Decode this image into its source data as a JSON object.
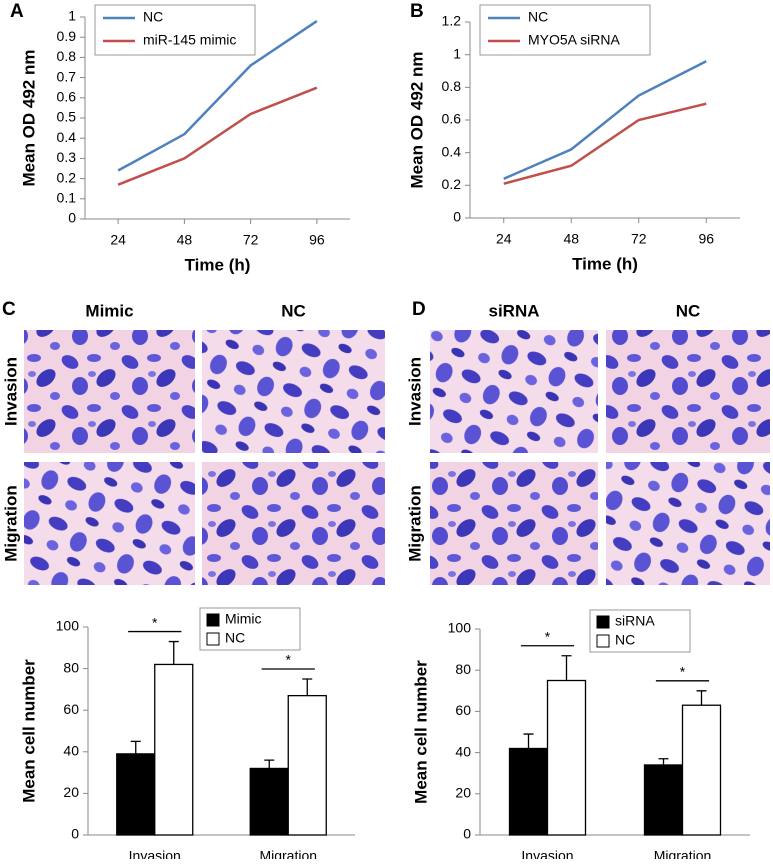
{
  "chart_data": [
    {
      "type": "line",
      "panel": "A",
      "ylabel": "Mean OD 492 nm",
      "xlabel": "Time (h)",
      "x": [
        24,
        48,
        72,
        96
      ],
      "xlim": [
        12,
        108
      ],
      "xticks": [
        24,
        48,
        72,
        96
      ],
      "ylim": [
        0,
        1
      ],
      "yticks": [
        0,
        0.1,
        0.2,
        0.3,
        0.4,
        0.5,
        0.6,
        0.7,
        0.8,
        0.9,
        1
      ],
      "legend": "upper left",
      "series": [
        {
          "name": "NC",
          "color": "#4f81bd",
          "values": [
            0.24,
            0.42,
            0.76,
            0.98
          ]
        },
        {
          "name": "miR-145 mimic",
          "color": "#c0504d",
          "values": [
            0.17,
            0.3,
            0.52,
            0.65
          ]
        }
      ]
    },
    {
      "type": "line",
      "panel": "B",
      "ylabel": "Mean OD 492 nm",
      "xlabel": "Time (h)",
      "x": [
        24,
        48,
        72,
        96
      ],
      "xlim": [
        12,
        108
      ],
      "xticks": [
        24,
        48,
        72,
        96
      ],
      "ylim": [
        0,
        1.2
      ],
      "yticks": [
        0,
        0.2,
        0.4,
        0.6,
        0.8,
        1,
        1.2
      ],
      "legend": "upper left",
      "series": [
        {
          "name": "NC",
          "color": "#4f81bd",
          "values": [
            0.24,
            0.42,
            0.75,
            0.96
          ]
        },
        {
          "name": "MYO5A siRNA",
          "color": "#c0504d",
          "values": [
            0.21,
            0.32,
            0.6,
            0.7
          ]
        }
      ]
    },
    {
      "type": "bar",
      "ylabel": "Mean cell number",
      "categories": [
        "Invasion",
        "Migration"
      ],
      "ylim": [
        0,
        100
      ],
      "yticks": [
        0,
        20,
        40,
        60,
        80,
        100
      ],
      "legend": "upper right",
      "annotations": [
        "*",
        "*"
      ],
      "series": [
        {
          "name": "Mimic",
          "color": "#000000",
          "values": [
            39,
            32
          ],
          "errors": [
            6,
            4
          ]
        },
        {
          "name": "NC",
          "color": "#ffffff",
          "values": [
            82,
            67
          ],
          "errors": [
            11,
            8
          ]
        }
      ]
    },
    {
      "type": "bar",
      "ylabel": "Mean cell number",
      "categories": [
        "Invasion",
        "Migration"
      ],
      "ylim": [
        0,
        100
      ],
      "yticks": [
        0,
        20,
        40,
        60,
        80,
        100
      ],
      "legend": "upper right",
      "annotations": [
        "*",
        "*"
      ],
      "series": [
        {
          "name": "siRNA",
          "color": "#000000",
          "values": [
            42,
            34
          ],
          "errors": [
            7,
            3
          ]
        },
        {
          "name": "NC",
          "color": "#ffffff",
          "values": [
            75,
            63
          ],
          "errors": [
            12,
            7
          ]
        }
      ]
    }
  ],
  "images": [
    {
      "panel": "C",
      "columns": [
        "Mimic",
        "NC"
      ],
      "rows": [
        "Invasion",
        "Migration"
      ]
    },
    {
      "panel": "D",
      "columns": [
        "siRNA",
        "NC"
      ],
      "rows": [
        "Invasion",
        "Migration"
      ]
    }
  ]
}
